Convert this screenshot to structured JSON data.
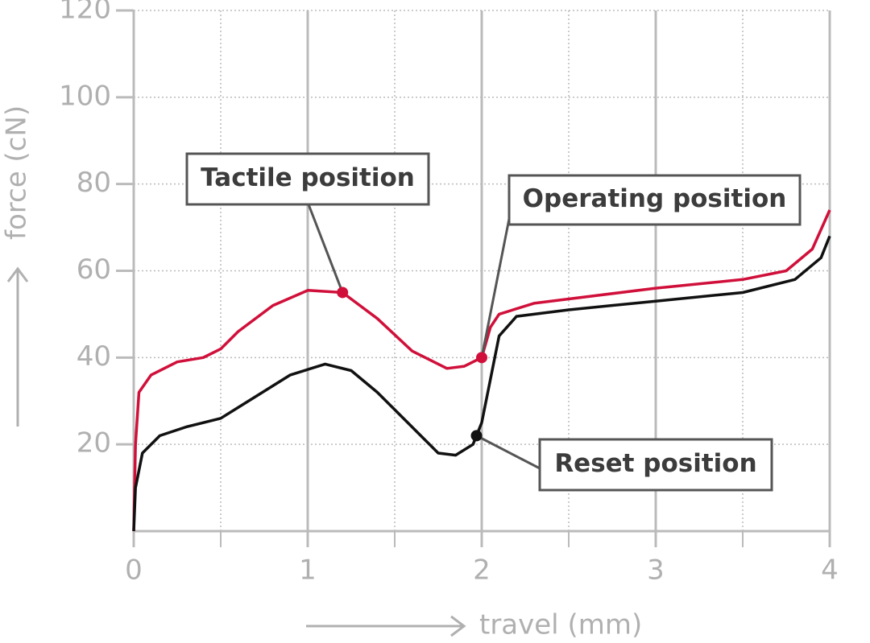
{
  "chart_data": {
    "type": "line",
    "x_label": "travel (mm)",
    "y_label": "force (cN)",
    "xlim": [
      0,
      4
    ],
    "ylim": [
      0,
      120
    ],
    "xticks": [
      0,
      1,
      2,
      3,
      4
    ],
    "xminor": [
      0.5,
      1.5,
      2.5,
      3.5
    ],
    "yticks": [
      20,
      40,
      60,
      80,
      100,
      120
    ],
    "grid": true,
    "series": [
      {
        "color": "#d0103a",
        "x": [
          0,
          0.01,
          0.03,
          0.1,
          0.25,
          0.4,
          0.5,
          0.6,
          0.8,
          1.0,
          1.2,
          1.4,
          1.6,
          1.8,
          1.9,
          2.0,
          2.05,
          2.1,
          2.3,
          2.5,
          3.0,
          3.5,
          3.75,
          3.9,
          4.0
        ],
        "values": [
          0,
          20,
          32,
          36,
          39,
          40,
          42,
          46,
          52,
          55.5,
          55,
          49,
          41.5,
          37.5,
          38,
          40,
          47,
          50,
          52.5,
          53.5,
          56,
          58,
          60,
          65,
          74
        ]
      },
      {
        "color": "#111111",
        "x": [
          0,
          0.01,
          0.05,
          0.15,
          0.3,
          0.5,
          0.7,
          0.9,
          1.1,
          1.25,
          1.4,
          1.6,
          1.75,
          1.85,
          1.95,
          2.0,
          2.05,
          2.1,
          2.2,
          2.5,
          3.0,
          3.5,
          3.8,
          3.95,
          4.0
        ],
        "values": [
          0,
          10,
          18,
          22,
          24,
          26,
          31,
          36,
          38.5,
          37,
          32,
          24,
          18,
          17.5,
          20,
          25,
          35,
          45,
          49.5,
          51,
          53,
          55,
          58,
          63,
          68
        ]
      }
    ],
    "annotations": [
      {
        "text": "Tactile position",
        "x": 1.2,
        "y": 55,
        "color": "#d0103a"
      },
      {
        "text": "Operating position",
        "x": 2.0,
        "y": 40,
        "color": "#d0103a"
      },
      {
        "text": "Reset position",
        "x": 1.97,
        "y": 22,
        "color": "#111111"
      }
    ]
  }
}
